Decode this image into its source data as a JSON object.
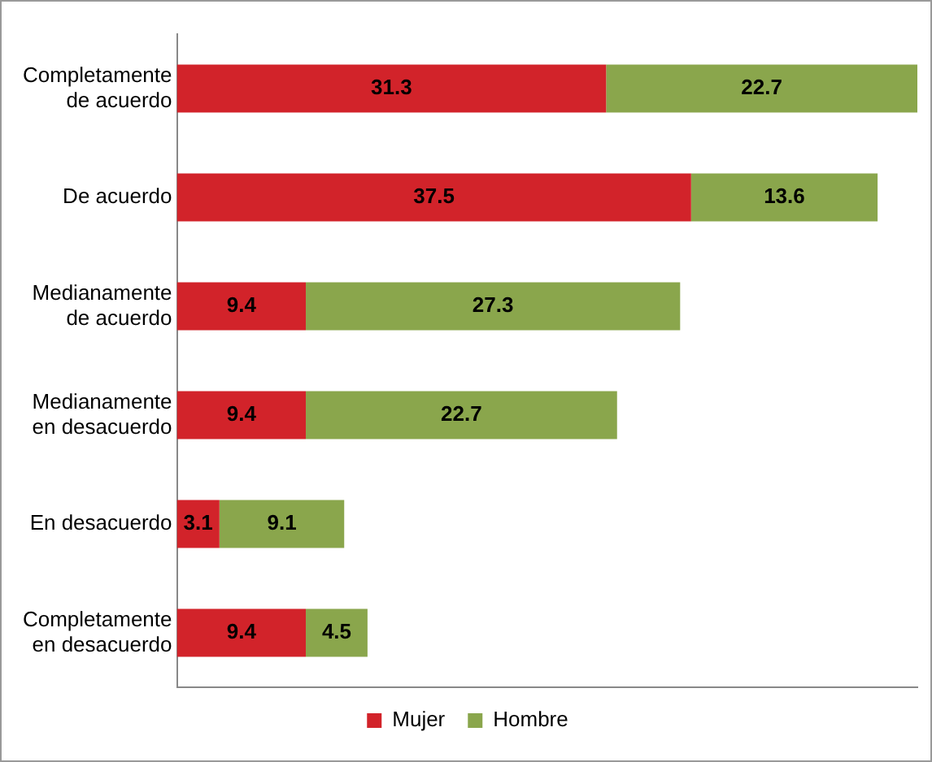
{
  "chart_data": {
    "type": "bar",
    "orientation": "horizontal",
    "stacked": true,
    "legend": "bottom",
    "grid": false,
    "tick_labels": "y",
    "data_labels": true,
    "categories": [
      "Completamente\nde acuerdo",
      "De acuerdo",
      "Medianamente\nde acuerdo",
      "Medianamente\nen desacuerdo",
      "En desacuerdo",
      "Completamente\nen desacuerdo"
    ],
    "series": [
      {
        "name": "Mujer",
        "color": "#d2232a",
        "values": [
          31.3,
          37.5,
          9.4,
          9.4,
          3.1,
          9.4
        ]
      },
      {
        "name": "Hombre",
        "color": "#8aa64c",
        "values": [
          22.7,
          13.6,
          27.3,
          22.7,
          9.1,
          4.5
        ]
      }
    ]
  }
}
